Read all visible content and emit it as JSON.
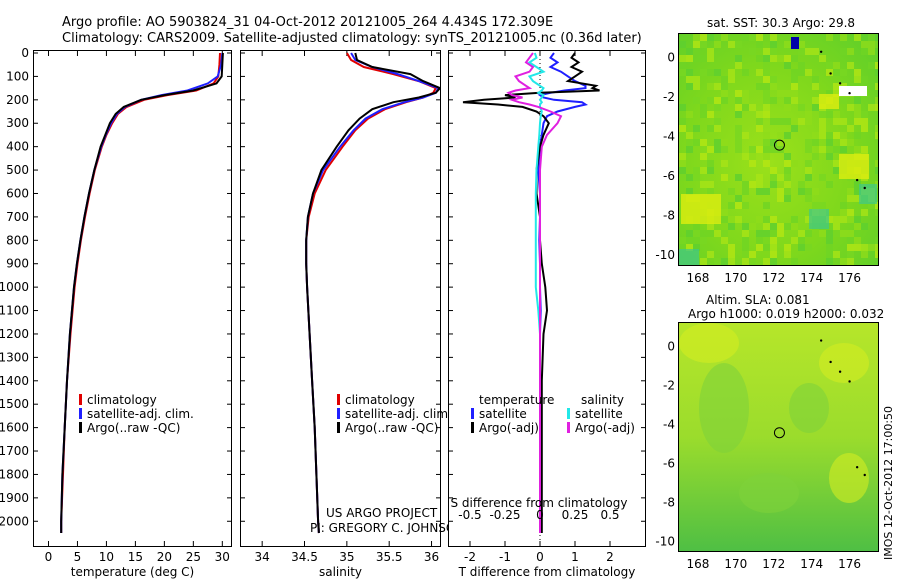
{
  "header": {
    "line1": "Argo profile: AO 5903824_31 04-Oct-2012 20121005_264 4.434S 172.309E",
    "line2": "Climatology: CARS2009. Satellite-adjusted climatology: synTS_20121005.nc (0.36d later)"
  },
  "colors": {
    "red": "#e00000",
    "blue": "#1f1fff",
    "black": "#000000",
    "cyan": "#22e8e8",
    "magenta": "#e020e0"
  },
  "depth_axis": {
    "ticks": [
      0,
      100,
      200,
      300,
      400,
      500,
      600,
      700,
      800,
      900,
      1000,
      1100,
      1200,
      1300,
      1400,
      1500,
      1600,
      1700,
      1800,
      1900,
      2000
    ],
    "range": [
      0,
      2080
    ]
  },
  "legend_profiles": [
    "climatology",
    "satellite-adj. clim.",
    "Argo(..raw -QC)"
  ],
  "legend_diff": {
    "temperature_title": "temperature",
    "salinity_title": "salinity",
    "satellite": "satellite",
    "argo_adj": "Argo(-adj)"
  },
  "project_note": {
    "line1": "US ARGO PROJECT",
    "line2": "PI: GREGORY C. JOHNSON"
  },
  "chart_data": [
    {
      "type": "line",
      "xlabel": "temperature (deg C)",
      "ylabel": "",
      "xlim": [
        -2.5,
        31.5
      ],
      "ylim": [
        2080,
        0
      ],
      "xticks": [
        0,
        5,
        10,
        15,
        20,
        25,
        30
      ],
      "depth": [
        0,
        50,
        100,
        130,
        160,
        180,
        200,
        230,
        260,
        300,
        350,
        400,
        500,
        600,
        700,
        800,
        900,
        1000,
        1200,
        1400,
        1600,
        1800,
        2000,
        2050
      ],
      "series": [
        {
          "name": "climatology",
          "color": "red",
          "values": [
            29.6,
            29.5,
            29.3,
            28.5,
            25.5,
            20.5,
            16.5,
            13.5,
            12.0,
            11.0,
            10.0,
            9.2,
            8.0,
            7.1,
            6.3,
            5.6,
            5.0,
            4.5,
            3.8,
            3.2,
            2.8,
            2.5,
            2.2,
            2.2
          ]
        },
        {
          "name": "satellite-adj. clim.",
          "color": "blue",
          "values": [
            30.0,
            29.8,
            29.2,
            27.5,
            24.0,
            19.5,
            16.0,
            13.2,
            11.8,
            10.8,
            9.9,
            9.1,
            7.9,
            7.0,
            6.2,
            5.5,
            4.9,
            4.4,
            3.7,
            3.2,
            2.8,
            2.4,
            2.2,
            2.2
          ]
        },
        {
          "name": "Argo(..raw -QC)",
          "color": "black",
          "values": [
            30.1,
            30.0,
            29.9,
            29.0,
            25.0,
            20.0,
            16.0,
            13.0,
            11.6,
            10.6,
            9.8,
            9.0,
            7.9,
            7.0,
            6.2,
            5.5,
            4.9,
            4.4,
            3.7,
            3.2,
            2.8,
            2.4,
            2.2,
            2.2
          ]
        }
      ]
    },
    {
      "type": "line",
      "xlabel": "salinity",
      "ylabel": "",
      "xlim": [
        33.75,
        36.1
      ],
      "ylim": [
        2080,
        0
      ],
      "xticks": [
        34,
        34.5,
        35,
        35.5,
        36
      ],
      "depth": [
        0,
        30,
        60,
        90,
        120,
        150,
        170,
        190,
        210,
        240,
        280,
        330,
        400,
        500,
        600,
        700,
        800,
        900,
        1000,
        1200,
        1400,
        1600,
        1800,
        2000,
        2050
      ],
      "series": [
        {
          "name": "climatology",
          "color": "red",
          "values": [
            35.0,
            35.05,
            35.2,
            35.55,
            35.85,
            36.05,
            36.02,
            35.9,
            35.7,
            35.45,
            35.25,
            35.1,
            34.95,
            34.75,
            34.62,
            34.55,
            34.52,
            34.52,
            34.53,
            34.56,
            34.59,
            34.62,
            34.64,
            34.66,
            34.67
          ]
        },
        {
          "name": "satellite-adj. clim.",
          "color": "blue",
          "values": [
            35.05,
            35.1,
            35.3,
            35.6,
            35.85,
            36.08,
            36.05,
            35.9,
            35.68,
            35.42,
            35.22,
            35.08,
            34.92,
            34.72,
            34.6,
            34.54,
            34.52,
            34.52,
            34.53,
            34.56,
            34.59,
            34.62,
            34.64,
            34.66,
            34.67
          ]
        },
        {
          "name": "Argo(..raw -QC)",
          "color": "black",
          "values": [
            35.1,
            35.12,
            35.3,
            35.75,
            35.9,
            36.1,
            36.05,
            35.85,
            35.55,
            35.3,
            35.15,
            35.02,
            34.88,
            34.7,
            34.6,
            34.54,
            34.52,
            34.52,
            34.53,
            34.56,
            34.59,
            34.62,
            34.64,
            34.66,
            34.67
          ]
        }
      ]
    },
    {
      "type": "line",
      "xlabel": "T difference from climatology",
      "xlabel_top": "S difference from climatology",
      "xlim": [
        -2.6,
        3.0
      ],
      "ylim": [
        2080,
        0
      ],
      "xticks": [
        -2,
        -1,
        0,
        1,
        2
      ],
      "xticks_s": [
        -0.5,
        -0.25,
        0,
        0.25,
        0.5
      ],
      "depth": [
        0,
        20,
        40,
        60,
        80,
        100,
        120,
        140,
        150,
        160,
        170,
        180,
        190,
        200,
        210,
        220,
        230,
        250,
        270,
        300,
        350,
        400,
        500,
        600,
        700,
        800,
        900,
        1000,
        1100,
        1200,
        1400,
        1600,
        1800,
        2000,
        2050
      ],
      "series": [
        {
          "name": "temperature satellite",
          "color": "blue",
          "values": [
            0.4,
            0.3,
            0.5,
            0.3,
            0.6,
            0.8,
            1.0,
            1.3,
            1.3,
            0.7,
            0.3,
            0.0,
            0.1,
            0.4,
            1.2,
            1.3,
            1.0,
            0.5,
            0.2,
            0.1,
            0.05,
            0.0,
            -0.05,
            0.0,
            0.0,
            -0.02,
            0.0,
            0.0,
            0.02,
            0.0,
            0.0,
            0.0,
            0.0,
            0.0,
            0.0
          ]
        },
        {
          "name": "temperature Argo(-adj)",
          "color": "black",
          "values": [
            1.0,
            0.9,
            1.1,
            0.9,
            1.2,
            1.0,
            0.8,
            1.6,
            1.5,
            1.7,
            0.0,
            -1.0,
            -0.7,
            -1.6,
            -2.2,
            -1.2,
            -0.5,
            -0.1,
            0.1,
            0.25,
            0.1,
            0.0,
            -0.1,
            -0.1,
            0.0,
            0.0,
            0.05,
            0.15,
            0.2,
            0.1,
            0.05,
            0.05,
            0.05,
            0.05,
            0.05
          ]
        },
        {
          "name": "salinity satellite",
          "color": "cyan",
          "values": [
            -0.15,
            -0.1,
            -0.3,
            -0.1,
            0.1,
            -0.3,
            -0.2,
            0.0,
            0.1,
            0.05,
            -0.05,
            0.1,
            0.05,
            0.0,
            0.05,
            0.0,
            0.0,
            0.05,
            0.02,
            0.0,
            -0.02,
            -0.05,
            -0.1,
            -0.12,
            -0.12,
            -0.12,
            -0.12,
            -0.12,
            -0.05,
            0.0,
            0.0,
            0.0,
            0.0,
            0.0,
            0.0
          ]
        },
        {
          "name": "salinity Argo(-adj)",
          "color": "magenta",
          "values": [
            -0.2,
            -0.3,
            -0.4,
            -0.2,
            -0.3,
            -0.7,
            -0.6,
            -0.4,
            -0.3,
            -0.7,
            -0.9,
            -0.8,
            -0.5,
            -0.8,
            -0.6,
            -0.3,
            -0.05,
            0.3,
            0.6,
            0.5,
            0.2,
            0.05,
            0.0,
            0.0,
            0.0,
            0.0,
            0.0,
            0.0,
            0.0,
            0.0,
            0.0,
            0.0,
            0.0,
            0.0,
            0.0
          ]
        }
      ]
    },
    {
      "type": "heatmap",
      "title": "sat. SST: 30.3 Argo: 29.8",
      "xlim": [
        167,
        177.5
      ],
      "ylim": [
        -10.5,
        1.2
      ],
      "xticks": [
        168,
        170,
        172,
        174,
        176
      ],
      "yticks": [
        0,
        -2,
        -4,
        -6,
        -8,
        -10
      ],
      "marker": {
        "lon": 172.3,
        "lat": -4.43
      }
    },
    {
      "type": "heatmap",
      "title": "Altim. SLA: 0.081",
      "subtitle": "Argo h1000: 0.019 h2000: 0.032",
      "xlim": [
        167,
        177.5
      ],
      "ylim": [
        -10.5,
        1.2
      ],
      "xticks": [
        168,
        170,
        172,
        174,
        176
      ],
      "yticks": [
        0,
        -2,
        -4,
        -6,
        -8,
        -10
      ],
      "marker": {
        "lon": 172.3,
        "lat": -4.43
      }
    }
  ],
  "side_stamp": "IMOS 12-Oct-2012 17:00:50"
}
